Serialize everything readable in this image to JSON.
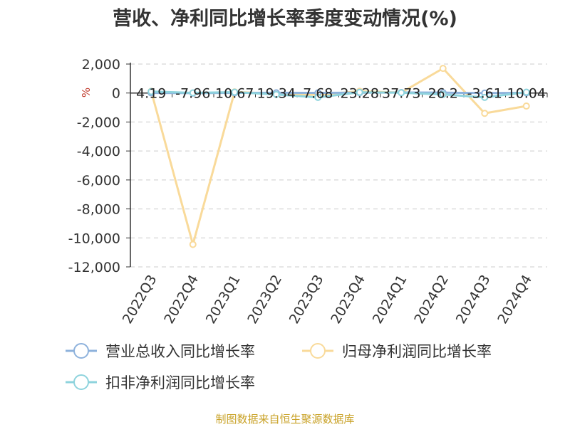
{
  "title": "营收、净利同比增长率季度变动情况(%)",
  "source": "制图数据来自恒生聚源数据库",
  "colors": {
    "revenue": "#8eb2dc",
    "net_profit": "#f9da9a",
    "deducted": "#8ed3dd"
  },
  "chart_data": {
    "type": "line",
    "title": "营收、净利同比增长率季度变动情况(%)",
    "ylabel": "%",
    "xlabel": "",
    "ylim": [
      -12000,
      2000
    ],
    "yticks": [
      2000,
      0,
      -2000,
      -4000,
      -6000,
      -8000,
      -10000,
      -12000
    ],
    "ytick_labels": [
      "2,000",
      "0",
      "-2,000",
      "-4,000",
      "-6,000",
      "-8,000",
      "-10,000",
      "-12,000"
    ],
    "grid": true,
    "legend_position": "bottom",
    "categories": [
      "2022Q3",
      "2022Q4",
      "2023Q1",
      "2023Q2",
      "2023Q3",
      "2023Q4",
      "2024Q1",
      "2024Q2",
      "2024Q3",
      "2024Q4"
    ],
    "series": [
      {
        "name": "营业总收入同比增长率",
        "color": "#8eb2dc",
        "values": [
          4.19,
          -7.96,
          10.67,
          19.34,
          7.68,
          23.28,
          37.73,
          26.2,
          -3.61,
          10.04
        ]
      },
      {
        "name": "归母净利润同比增长率",
        "color": "#f9da9a",
        "values": [
          120,
          -10450,
          80,
          -60,
          -120,
          120,
          30,
          1700,
          -1400,
          -900
        ]
      },
      {
        "name": "扣非净利润同比增长率",
        "color": "#8ed3dd",
        "values": [
          100,
          10,
          60,
          -100,
          -300,
          50,
          20,
          -100,
          -300,
          60
        ]
      }
    ],
    "data_labels": [
      "4.19",
      "-7.96",
      "10.67",
      "19.34",
      "7.68",
      "23.28",
      "37.73",
      "26.2",
      "-3.61",
      "10.04"
    ]
  }
}
